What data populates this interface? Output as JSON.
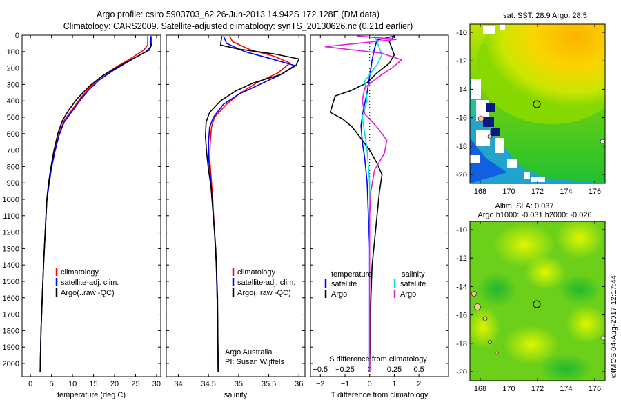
{
  "header": {
    "line1": "Argo profile: csiro 5903703_62 26-Jun-2013 14.942S 172.128E (DM data)",
    "line2": "Climatology: CARS2009. Satellite-adjusted climatology: synTS_20130626.nc (0.21d earlier)"
  },
  "colors": {
    "climatology": "#ff0000",
    "satellite": "#0000ff",
    "argo": "#000000",
    "salinity_satellite": "#00e0e0",
    "salinity_argo": "#e020e0"
  },
  "chart_data": [
    {
      "id": "temperature",
      "type": "line",
      "xlabel": "temperature (deg C)",
      "ylim": [
        2080,
        0
      ],
      "xlim": [
        -2,
        31
      ],
      "xticks": [
        0,
        5,
        10,
        15,
        20,
        25,
        30
      ],
      "yticks": [
        0,
        100,
        200,
        300,
        400,
        500,
        600,
        700,
        800,
        900,
        1000,
        1100,
        1200,
        1300,
        1400,
        1500,
        1600,
        1700,
        1800,
        1900,
        2000
      ],
      "legend": [
        "climatology",
        "satellite-adj. clim.",
        "Argo(..raw -QC)"
      ],
      "series": [
        {
          "name": "climatology",
          "color": "#ff0000",
          "points": [
            [
              27.9,
              5
            ],
            [
              27.9,
              60
            ],
            [
              27.0,
              90
            ],
            [
              24,
              140
            ],
            [
              20,
              200
            ],
            [
              16.5,
              260
            ],
            [
              14,
              320
            ],
            [
              12,
              380
            ],
            [
              10,
              450
            ],
            [
              8,
              520
            ],
            [
              6.8,
              600
            ],
            [
              5.8,
              700
            ],
            [
              5.0,
              800
            ],
            [
              4.4,
              900
            ],
            [
              3.9,
              1000
            ],
            [
              3.5,
              1200
            ],
            [
              3.1,
              1400
            ],
            [
              2.8,
              1600
            ],
            [
              2.5,
              1800
            ],
            [
              2.3,
              2050
            ]
          ]
        },
        {
          "name": "satellite-adj. clim.",
          "color": "#0000ff",
          "points": [
            [
              28.6,
              5
            ],
            [
              28.6,
              70
            ],
            [
              27.5,
              100
            ],
            [
              24,
              150
            ],
            [
              20,
              210
            ],
            [
              16.5,
              270
            ],
            [
              14,
              330
            ],
            [
              12,
              390
            ],
            [
              10,
              460
            ],
            [
              8,
              530
            ],
            [
              6.8,
              610
            ],
            [
              5.8,
              710
            ],
            [
              5.0,
              810
            ],
            [
              4.4,
              910
            ],
            [
              3.9,
              1010
            ],
            [
              3.5,
              1200
            ],
            [
              3.1,
              1400
            ],
            [
              2.8,
              1600
            ],
            [
              2.5,
              1800
            ],
            [
              2.3,
              2050
            ]
          ]
        },
        {
          "name": "Argo(..raw -QC)",
          "color": "#000000",
          "points": [
            [
              28.9,
              5
            ],
            [
              28.9,
              50
            ],
            [
              28.3,
              90
            ],
            [
              25,
              135
            ],
            [
              21,
              190
            ],
            [
              17,
              250
            ],
            [
              14,
              310
            ],
            [
              11,
              390
            ],
            [
              9,
              460
            ],
            [
              7.6,
              520
            ],
            [
              6.5,
              600
            ],
            [
              5.6,
              700
            ],
            [
              4.9,
              800
            ],
            [
              4.3,
              900
            ],
            [
              3.9,
              1000
            ],
            [
              3.5,
              1200
            ],
            [
              3.1,
              1400
            ],
            [
              2.8,
              1600
            ],
            [
              2.5,
              1800
            ],
            [
              2.3,
              2050
            ]
          ]
        }
      ]
    },
    {
      "id": "salinity",
      "type": "line",
      "xlabel": "salinity",
      "ylim": [
        2080,
        0
      ],
      "xlim": [
        33.8,
        36.1
      ],
      "xticks": [
        34,
        34.5,
        35,
        35.5,
        36
      ],
      "xticklabels": [
        "34",
        "34.5",
        "35",
        "35.5",
        "36"
      ],
      "legend": [
        "climatology",
        "satellite-adj. clim.",
        "Argo(..raw -QC)"
      ],
      "annotations": [
        "Argo Australia",
        "PI: Susan Wijffels"
      ],
      "series": [
        {
          "name": "climatology",
          "color": "#ff0000",
          "points": [
            [
              34.85,
              5
            ],
            [
              34.9,
              40
            ],
            [
              35.2,
              90
            ],
            [
              35.6,
              130
            ],
            [
              35.85,
              170
            ],
            [
              35.65,
              230
            ],
            [
              35.3,
              290
            ],
            [
              35.0,
              360
            ],
            [
              34.8,
              420
            ],
            [
              34.6,
              500
            ],
            [
              34.55,
              560
            ],
            [
              34.53,
              650
            ],
            [
              34.52,
              750
            ],
            [
              34.54,
              850
            ],
            [
              34.57,
              1000
            ],
            [
              34.6,
              1200
            ],
            [
              34.63,
              1400
            ],
            [
              34.65,
              1700
            ],
            [
              34.66,
              2050
            ]
          ]
        },
        {
          "name": "satellite-adj. clim.",
          "color": "#0000ff",
          "points": [
            [
              34.75,
              5
            ],
            [
              34.8,
              50
            ],
            [
              35.1,
              100
            ],
            [
              35.5,
              140
            ],
            [
              35.93,
              185
            ],
            [
              35.7,
              240
            ],
            [
              35.35,
              300
            ],
            [
              35.0,
              360
            ],
            [
              34.75,
              420
            ],
            [
              34.58,
              500
            ],
            [
              34.52,
              560
            ],
            [
              34.5,
              650
            ],
            [
              34.5,
              750
            ],
            [
              34.53,
              850
            ],
            [
              34.56,
              1000
            ],
            [
              34.6,
              1200
            ],
            [
              34.63,
              1400
            ],
            [
              34.65,
              1700
            ],
            [
              34.66,
              2050
            ]
          ]
        },
        {
          "name": "Argo(..raw -QC)",
          "color": "#000000",
          "points": [
            [
              34.72,
              5
            ],
            [
              34.7,
              60
            ],
            [
              35.0,
              85
            ],
            [
              35.6,
              115
            ],
            [
              36.0,
              145
            ],
            [
              35.95,
              185
            ],
            [
              35.7,
              240
            ],
            [
              35.25,
              290
            ],
            [
              34.95,
              340
            ],
            [
              34.7,
              400
            ],
            [
              34.52,
              470
            ],
            [
              34.46,
              530
            ],
            [
              34.45,
              620
            ],
            [
              34.47,
              720
            ],
            [
              34.5,
              820
            ],
            [
              34.54,
              920
            ],
            [
              34.58,
              1100
            ],
            [
              34.62,
              1300
            ],
            [
              34.65,
              1600
            ],
            [
              34.66,
              2050
            ]
          ]
        }
      ]
    },
    {
      "id": "difference",
      "type": "line",
      "xlabel": "T difference from climatology",
      "x2label": "S difference from climatology",
      "ylim": [
        2080,
        0
      ],
      "xlim": [
        -2.4,
        3.2
      ],
      "xticks": [
        -2,
        -1,
        0,
        1,
        2
      ],
      "x2ticks": [
        -0.5,
        -0.25,
        0,
        0.25,
        0.5
      ],
      "x2ticklabels": [
        "−0.5",
        "−0.25",
        "0",
        "0.25",
        "0.5"
      ],
      "xticklabels": [
        "−2",
        "−1",
        "0",
        "1",
        "2"
      ],
      "legend_headers": [
        "temperature",
        "salinity"
      ],
      "legend": [
        "satellite",
        "Argo",
        "satellite",
        "Argo"
      ],
      "series": [
        {
          "name": "temperature satellite",
          "color": "#0000ff",
          "points": [
            [
              1.0,
              5
            ],
            [
              0.3,
              30
            ],
            [
              0.2,
              80
            ],
            [
              0.1,
              150
            ],
            [
              0,
              250
            ],
            [
              -0.1,
              350
            ],
            [
              -0.25,
              450
            ],
            [
              -0.35,
              550
            ],
            [
              -0.3,
              650
            ],
            [
              -0.2,
              750
            ],
            [
              -0.1,
              900
            ],
            [
              -0.05,
              1100
            ],
            [
              0,
              1300
            ],
            [
              0,
              1600
            ],
            [
              0,
              2050
            ]
          ]
        },
        {
          "name": "temperature Argo",
          "color": "#000000",
          "points": [
            [
              1.0,
              5
            ],
            [
              0.8,
              40
            ],
            [
              0.9,
              80
            ],
            [
              1.0,
              120
            ],
            [
              0.8,
              170
            ],
            [
              0.3,
              230
            ],
            [
              -0.1,
              290
            ],
            [
              -0.8,
              340
            ],
            [
              -1.4,
              370
            ],
            [
              -1.5,
              420
            ],
            [
              -1.6,
              470
            ],
            [
              -1.1,
              510
            ],
            [
              -0.7,
              560
            ],
            [
              -0.4,
              620
            ],
            [
              0,
              700
            ],
            [
              0.3,
              780
            ],
            [
              0.5,
              850
            ],
            [
              0.4,
              950
            ],
            [
              0.3,
              1100
            ],
            [
              0.2,
              1250
            ],
            [
              0.1,
              1400
            ],
            [
              0.05,
              1600
            ],
            [
              0,
              2050
            ]
          ]
        },
        {
          "name": "salinity satellite",
          "color": "#00e0e0",
          "points": [
            [
              0.2,
              5
            ],
            [
              0.3,
              40
            ],
            [
              0.4,
              80
            ],
            [
              0.5,
              120
            ],
            [
              0.3,
              180
            ],
            [
              -0.2,
              280
            ],
            [
              -0.1,
              400
            ],
            [
              -0.3,
              500
            ],
            [
              -0.2,
              600
            ],
            [
              -0.1,
              700
            ],
            [
              0,
              900
            ],
            [
              0,
              1200
            ],
            [
              0,
              1600
            ],
            [
              0,
              2050
            ]
          ]
        },
        {
          "name": "salinity Argo",
          "color": "#e020e0",
          "points": [
            [
              -0.5,
              5
            ],
            [
              1.1,
              25
            ],
            [
              -1.8,
              70
            ],
            [
              0.5,
              110
            ],
            [
              1.3,
              150
            ],
            [
              0.9,
              200
            ],
            [
              0.3,
              260
            ],
            [
              -0.2,
              320
            ],
            [
              -0.3,
              400
            ],
            [
              -0.2,
              480
            ],
            [
              0.3,
              560
            ],
            [
              0.7,
              640
            ],
            [
              0.6,
              720
            ],
            [
              0.2,
              820
            ],
            [
              0.05,
              950
            ],
            [
              0,
              1100
            ],
            [
              0,
              1400
            ],
            [
              0,
              2050
            ]
          ]
        }
      ]
    }
  ],
  "maps": {
    "sst": {
      "title": "sat. SST: 28.9 Argo: 28.5",
      "xticks": [
        "168",
        "170",
        "172",
        "174",
        "176"
      ],
      "yticks": [
        "-10",
        "-12",
        "-14",
        "-16",
        "-18",
        "-20"
      ]
    },
    "sla": {
      "title1": "Altim. SLA: 0.037",
      "title2": "Argo h1000: -0.031 h2000: -0.026",
      "xticks": [
        "168",
        "170",
        "172",
        "174",
        "176"
      ],
      "yticks": [
        "-10",
        "-12",
        "-14",
        "-16",
        "-18",
        "-20"
      ]
    }
  },
  "footer": {
    "credit": "©IMOS 04-Aug-2017 12:17:44"
  }
}
